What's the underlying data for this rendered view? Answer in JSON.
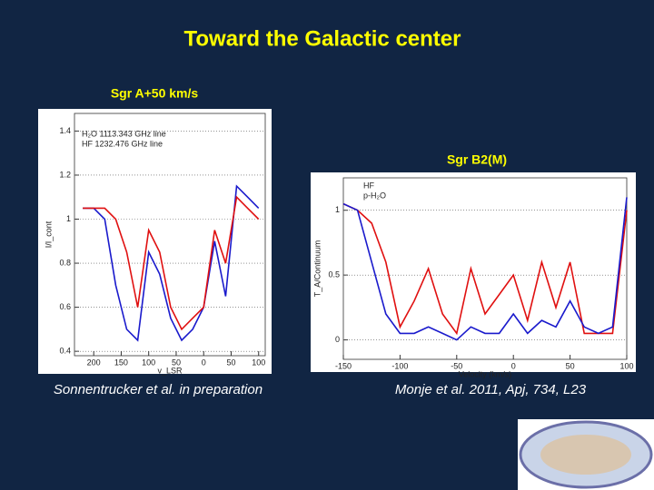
{
  "title": "Toward the Galactic center",
  "panels": [
    {
      "label": "Sgr A+50 km/s",
      "caption": "Sonnentrucker et al. in preparation",
      "chart": {
        "type": "line",
        "ylabel": "I/I_cont",
        "xlabel": "v_LSR",
        "x": [
          -220,
          -200,
          -180,
          -160,
          -140,
          -120,
          -100,
          -80,
          -60,
          -40,
          -20,
          0,
          20,
          40,
          60,
          80,
          100
        ],
        "series": [
          {
            "name": "H₂O 1113.343 GHz line",
            "color": "#1a1acc",
            "values": [
              1.05,
              1.05,
              1.0,
              0.7,
              0.5,
              0.45,
              0.85,
              0.75,
              0.55,
              0.45,
              0.5,
              0.6,
              0.9,
              0.65,
              1.15,
              1.1,
              1.05
            ]
          },
          {
            "name": "HF 1232.476 GHz line",
            "color": "#e01010",
            "values": [
              1.05,
              1.05,
              1.05,
              1.0,
              0.85,
              0.6,
              0.95,
              0.85,
              0.6,
              0.5,
              0.55,
              0.6,
              0.95,
              0.8,
              1.1,
              1.05,
              1.0
            ]
          }
        ],
        "xlim": [
          -235,
          112
        ],
        "xticks": [
          {
            "value": -200,
            "label": "200"
          },
          {
            "value": -150,
            "label": "150"
          },
          {
            "value": -100,
            "label": "100"
          },
          {
            "value": -50,
            "label": "50"
          },
          0,
          50,
          100
        ],
        "ylim": [
          0.38,
          1.48
        ],
        "yticks": [
          0.4,
          0.6,
          0.8,
          1,
          1.2,
          1.4
        ]
      }
    },
    {
      "label": "Sgr B2(M)",
      "caption": "Monje et al. 2011, Apj, 734, L23",
      "chart": {
        "type": "line",
        "ylabel": "T_A/Continuum",
        "xlabel": "Velocity (km/s)",
        "x": [
          -150,
          -137.5,
          -125,
          -112.5,
          -100,
          -87.5,
          -75,
          -62.5,
          -50,
          -37.5,
          -25,
          -12.5,
          0,
          12.5,
          25,
          37.5,
          50,
          62.5,
          75,
          87.5,
          100
        ],
        "series": [
          {
            "name": "HF",
            "color": "#e01010",
            "values": [
              1.05,
              1.0,
              0.9,
              0.6,
              0.1,
              0.3,
              0.55,
              0.2,
              0.05,
              0.55,
              0.2,
              0.35,
              0.5,
              0.15,
              0.6,
              0.25,
              0.6,
              0.05,
              0.05,
              0.05,
              1.0
            ]
          },
          {
            "name": "p-H₂O",
            "color": "#1a1acc",
            "values": [
              1.05,
              1.0,
              0.6,
              0.2,
              0.05,
              0.05,
              0.1,
              0.05,
              0.0,
              0.1,
              0.05,
              0.05,
              0.2,
              0.05,
              0.15,
              0.1,
              0.3,
              0.1,
              0.05,
              0.1,
              1.1
            ]
          }
        ],
        "xlim": [
          -150,
          100
        ],
        "xticks": [
          -150,
          -100,
          -50,
          0,
          50,
          100
        ],
        "ylim": [
          -0.15,
          1.25
        ],
        "yticks": [
          0,
          0.5,
          1
        ]
      }
    }
  ]
}
